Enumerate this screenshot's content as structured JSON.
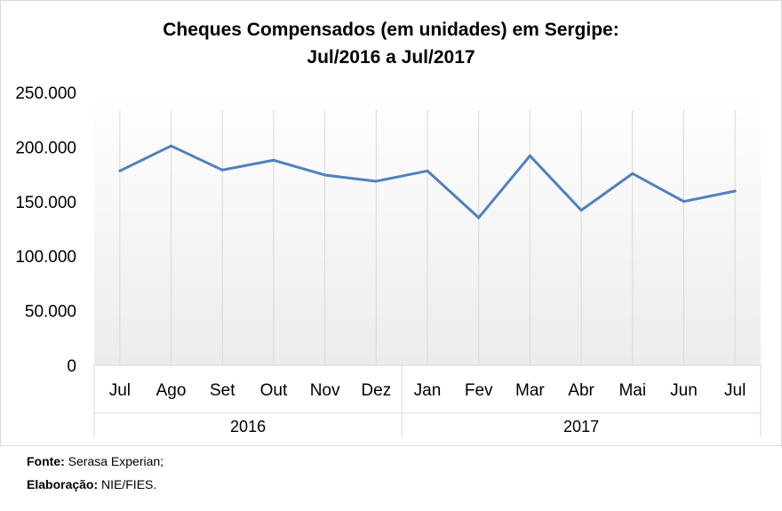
{
  "chart_data": {
    "type": "line",
    "title": "Cheques  Compensados  (em unidades)  em Sergipe:",
    "subtitle": "Jul/2016  a Jul/2017",
    "categories": [
      "Jul",
      "Ago",
      "Set",
      "Out",
      "Nov",
      "Dez",
      "Jan",
      "Fev",
      "Mar",
      "Abr",
      "Mai",
      "Jun",
      "Jul"
    ],
    "groups": [
      {
        "label": "2016",
        "count": 6
      },
      {
        "label": "2017",
        "count": 7
      }
    ],
    "series": [
      {
        "name": "Cheques Compensados",
        "color": "#4f81bd",
        "values": [
          178100,
          201000,
          178900,
          187900,
          174300,
          168600,
          178100,
          135200,
          191950,
          142000,
          175600,
          150100,
          159600
        ]
      }
    ],
    "yticks": [
      "0",
      "50.000",
      "100.000",
      "150.000",
      "200.000",
      "250.000"
    ],
    "ylim": [
      0,
      250000
    ],
    "grid": "vertical at categories",
    "xlabel": "",
    "ylabel": ""
  },
  "footer": {
    "source_label": "Fonte:",
    "source_value": " Serasa Experian;",
    "elab_label": "Elaboração:",
    "elab_value": " NIE/FIES."
  }
}
